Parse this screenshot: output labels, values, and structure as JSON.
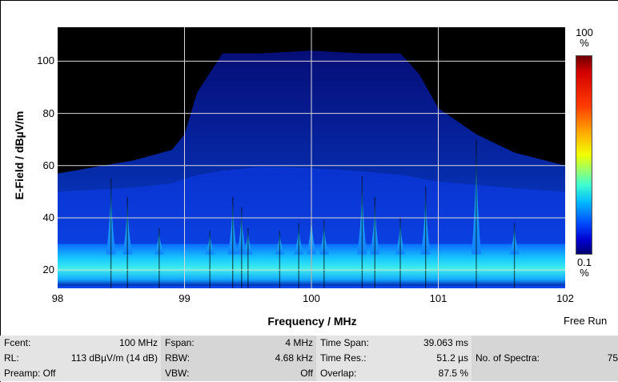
{
  "chart_data": {
    "type": "heatmap",
    "title": "",
    "xlabel": "Frequency / MHz",
    "ylabel": "E-Field / dBµV/m",
    "xlim": [
      98,
      102
    ],
    "ylim": [
      13,
      113
    ],
    "x_ticks": [
      "98",
      "99",
      "100",
      "101",
      "102"
    ],
    "y_ticks": [
      "20",
      "40",
      "60",
      "80",
      "100"
    ],
    "grid": true,
    "background": "#000000",
    "envelope": {
      "x": [
        98,
        98.6,
        98.9,
        99.0,
        99.1,
        99.3,
        99.6,
        100,
        100.4,
        100.7,
        100.85,
        101.0,
        101.3,
        101.6,
        102
      ],
      "y": [
        57,
        62,
        66,
        72,
        88,
        103,
        103,
        104,
        103,
        103,
        95,
        82,
        72,
        65,
        60
      ]
    },
    "noise_floor": [
      14,
      30
    ],
    "spurs": [
      {
        "freq": 98.42,
        "level": 55
      },
      {
        "freq": 98.55,
        "level": 48
      },
      {
        "freq": 98.8,
        "level": 36
      },
      {
        "freq": 99.2,
        "level": 35
      },
      {
        "freq": 99.38,
        "level": 48
      },
      {
        "freq": 99.45,
        "level": 44
      },
      {
        "freq": 99.5,
        "level": 36
      },
      {
        "freq": 99.75,
        "level": 35
      },
      {
        "freq": 99.9,
        "level": 38
      },
      {
        "freq": 100.0,
        "level": 42
      },
      {
        "freq": 100.1,
        "level": 39
      },
      {
        "freq": 100.4,
        "level": 56
      },
      {
        "freq": 100.5,
        "level": 48
      },
      {
        "freq": 100.7,
        "level": 40
      },
      {
        "freq": 100.9,
        "level": 52
      },
      {
        "freq": 101.3,
        "level": 70
      },
      {
        "freq": 101.6,
        "level": 38
      }
    ],
    "colorbar": {
      "top_label": "100",
      "top_unit": "%",
      "bottom_label": "0.1",
      "bottom_unit": "%",
      "colors": [
        "#6e0000",
        "#d20000",
        "#ff3a00",
        "#ffb400",
        "#f0ff00",
        "#40ffd0",
        "#00b8ff",
        "#0050ff",
        "#0000d0",
        "#000070"
      ]
    }
  },
  "run_mode": "Free Run",
  "info": {
    "fcent_key": "Fcent:",
    "fcent_val": "100 MHz",
    "rl_key": "RL:",
    "rl_val": "113 dBµV/m (14 dB)",
    "preamp_key": "Preamp: Off",
    "fspan_key": "Fspan:",
    "fspan_val": "4 MHz",
    "rbw_key": "RBW:",
    "rbw_val": "4.68 kHz",
    "vbw_key": "VBW:",
    "vbw_val": "Off",
    "timespan_key": "Time Span:",
    "timespan_val": "39.063 ms",
    "timeres_key": "Time Res.:",
    "timeres_val": "51.2 µs",
    "overlap_key": "Overlap:",
    "overlap_val": "87.5 %",
    "nospectra_key": "No. of Spectra:",
    "nospectra_val": "75"
  }
}
